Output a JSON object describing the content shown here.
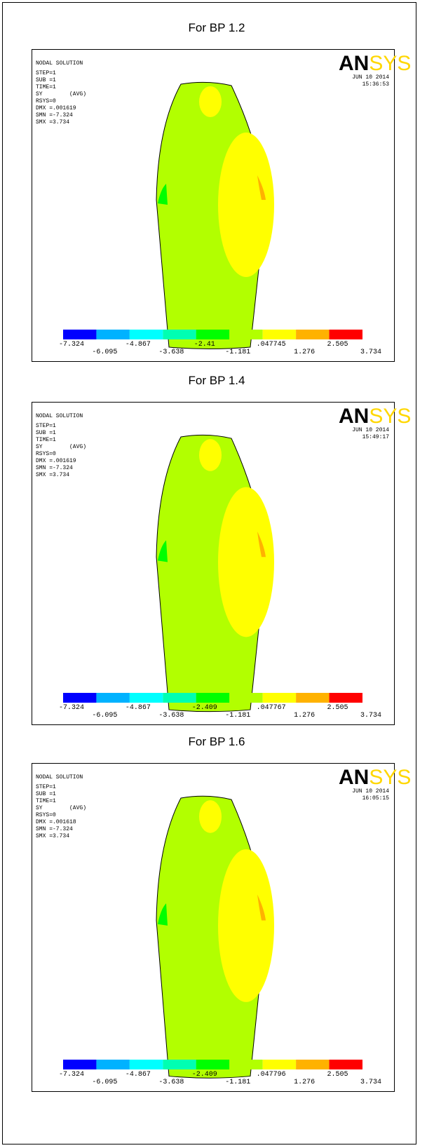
{
  "logo": {
    "left": "AN",
    "right": "SYS"
  },
  "legend_colors": [
    "#0000ff",
    "#00b2ff",
    "#00ffff",
    "#00ffb2",
    "#00ff00",
    "#b2ff00",
    "#ffff00",
    "#ffb200",
    "#ff0000"
  ],
  "panels": [
    {
      "caption": "For BP 1.2",
      "title": "NODAL SOLUTION",
      "lines": [
        "STEP=1",
        "SUB =1",
        "TIME=1",
        "SY        (AVG)",
        "RSYS=0",
        "DMX =.001619",
        "SMN =-7.324",
        "SMX =3.734"
      ],
      "date": "JUN 10 2014",
      "time": "15:36:53",
      "legend_labels": [
        "-7.324",
        "-6.095",
        "-4.867",
        "-3.638",
        "-2.41",
        "-1.181",
        ".047745",
        "1.276",
        "2.505",
        "3.734"
      ]
    },
    {
      "caption": "For BP 1.4",
      "title": "NODAL SOLUTION",
      "lines": [
        "STEP=1",
        "SUB =1",
        "TIME=1",
        "SY        (AVG)",
        "RSYS=0",
        "DMX =.001619",
        "SMN =-7.324",
        "SMX =3.734"
      ],
      "date": "JUN 10 2014",
      "time": "15:49:17",
      "legend_labels": [
        "-7.324",
        "-6.095",
        "-4.867",
        "-3.638",
        "-2.409",
        "-1.181",
        ".047767",
        "1.276",
        "2.505",
        "3.734"
      ]
    },
    {
      "caption": "For BP 1.6",
      "title": "NODAL SOLUTION",
      "lines": [
        "STEP=1",
        "SUB =1",
        "TIME=1",
        "SY        (AVG)",
        "RSYS=0",
        "DMX =.001618",
        "SMN =-7.324",
        "SMX =3.734"
      ],
      "date": "JUN 10 2014",
      "time": "16:05:15",
      "legend_labels": [
        "-7.324",
        "-6.095",
        "-4.867",
        "-3.638",
        "-2.409",
        "-1.181",
        ".047796",
        "1.276",
        "2.505",
        "3.734"
      ]
    }
  ]
}
